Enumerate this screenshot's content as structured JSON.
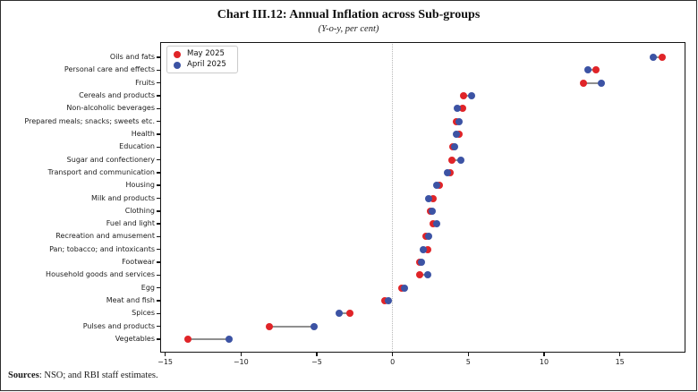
{
  "figure": {
    "footer_label": "Sources",
    "footer_text": ": NSO; and RBI staff estimates."
  },
  "chart_data": {
    "type": "scatter",
    "variant": "horizontal-dot-plot",
    "title": "Chart III.12: Annual Inflation across Sub-groups",
    "subtitle": "(Y-o-y, per cent)",
    "xlabel": "",
    "ylabel": "",
    "grid": false,
    "legend_position": "upper-left",
    "zero_reference_line": true,
    "xlim": [
      -15.33,
      19.33
    ],
    "xticks": [
      -15,
      -10,
      -5,
      0,
      5,
      10,
      15
    ],
    "xtick_labels": [
      "−15",
      "−10",
      "−5",
      "0",
      "5",
      "10",
      "15"
    ],
    "categories": [
      "Oils and fats",
      "Personal care and effects",
      "Fruits",
      "Cereals and products",
      "Non-alcoholic beverages",
      "Prepared meals; snacks; sweets etc.",
      "Health",
      "Education",
      "Sugar and confectionery",
      "Transport and communication",
      "Housing",
      "Milk and products",
      "Clothing",
      "Fuel and light",
      "Recreation and amusement",
      "Pan; tobacco; and intoxicants",
      "Footwear",
      "Household goods and services",
      "Egg",
      "Meat and fish",
      "Spices",
      "Pulses and products",
      "Vegetables"
    ],
    "series": [
      {
        "name": "May 2025",
        "color": "#e02428",
        "values": [
          17.8,
          13.4,
          12.6,
          4.7,
          4.6,
          4.2,
          4.4,
          4.0,
          3.9,
          3.8,
          3.1,
          2.7,
          2.5,
          2.7,
          2.2,
          2.3,
          1.8,
          1.8,
          0.6,
          -0.5,
          -2.8,
          -8.1,
          -13.5
        ]
      },
      {
        "name": "April 2025",
        "color": "#3c53a4",
        "values": [
          17.2,
          12.9,
          13.8,
          5.2,
          4.3,
          4.4,
          4.2,
          4.1,
          4.5,
          3.6,
          2.9,
          2.4,
          2.6,
          2.9,
          2.4,
          2.0,
          1.9,
          2.3,
          0.8,
          -0.3,
          -3.5,
          -5.2,
          -10.8
        ]
      }
    ],
    "connector_color": "#8f8f8f",
    "zero_line_color": "#b8b8b8",
    "axis_color": "#141414"
  }
}
